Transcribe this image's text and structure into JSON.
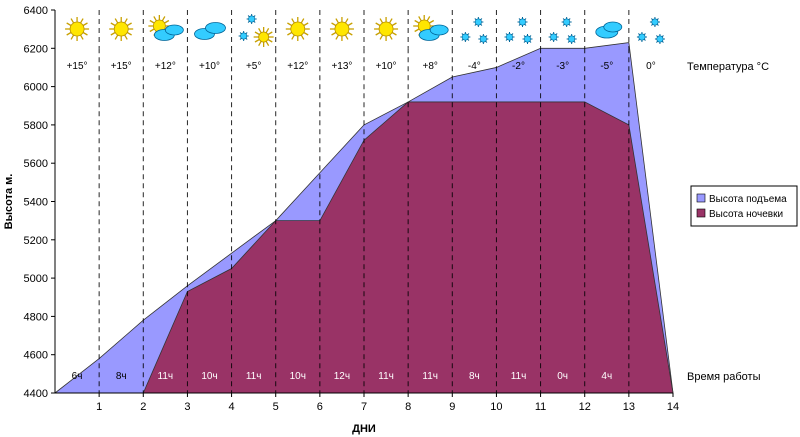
{
  "chart_data": {
    "type": "area",
    "xlabel": "ДНИ",
    "ylabel": "Высота м.",
    "xlim": [
      0,
      14
    ],
    "ylim": [
      4400,
      6400
    ],
    "y_ticks": [
      4400,
      4600,
      4800,
      5000,
      5200,
      5400,
      5600,
      5800,
      6000,
      6200,
      6400
    ],
    "x_ticks": [
      1,
      2,
      3,
      4,
      5,
      6,
      7,
      8,
      9,
      10,
      11,
      12,
      13,
      14
    ],
    "series": [
      {
        "name": "Высота подъема",
        "color": "#9999ff",
        "points": [
          [
            0,
            4400
          ],
          [
            1,
            4580
          ],
          [
            2,
            4780
          ],
          [
            3,
            4960
          ],
          [
            4,
            5130
          ],
          [
            5,
            5300
          ],
          [
            6,
            5550
          ],
          [
            7,
            5800
          ],
          [
            8,
            5920
          ],
          [
            9,
            6050
          ],
          [
            10,
            6100
          ],
          [
            11,
            6200
          ],
          [
            12,
            6200
          ],
          [
            13,
            6230
          ],
          [
            14,
            4400
          ]
        ]
      },
      {
        "name": "Высота ночевки",
        "color": "#993366",
        "points": [
          [
            2,
            4400
          ],
          [
            3,
            4930
          ],
          [
            4,
            5050
          ],
          [
            5,
            5300
          ],
          [
            6,
            5300
          ],
          [
            7,
            5720
          ],
          [
            8,
            5920
          ],
          [
            9,
            5920
          ],
          [
            10,
            5920
          ],
          [
            11,
            5920
          ],
          [
            12,
            5920
          ],
          [
            13,
            5800
          ],
          [
            14,
            4400
          ]
        ]
      }
    ],
    "temperature_label": "Температура °C",
    "temperatures": [
      "+15°",
      "+15°",
      "+12°",
      "+10°",
      "+5°",
      "+12°",
      "+13°",
      "+10°",
      "+8°",
      "-4°",
      "-2°",
      "-3°",
      "-5°",
      "0°"
    ],
    "weather_icons": [
      "sun-icon",
      "sun-icon",
      "sun-cloud-icon",
      "cloud-icon",
      "snow-sun-icon",
      "sun-icon",
      "sun-icon",
      "sun-icon",
      "sun-cloud-icon",
      "snow-icon",
      "snow-icon",
      "snow-icon",
      "snow-cloud-icon",
      "snow-icon"
    ],
    "work_time_label": "Время работы",
    "work_hours": [
      "6ч",
      "8ч",
      "11ч",
      "10ч",
      "11ч",
      "10ч",
      "12ч",
      "11ч",
      "11ч",
      "8ч",
      "11ч",
      "0ч",
      "4ч",
      ""
    ],
    "legend_position": "right",
    "grid": false
  }
}
